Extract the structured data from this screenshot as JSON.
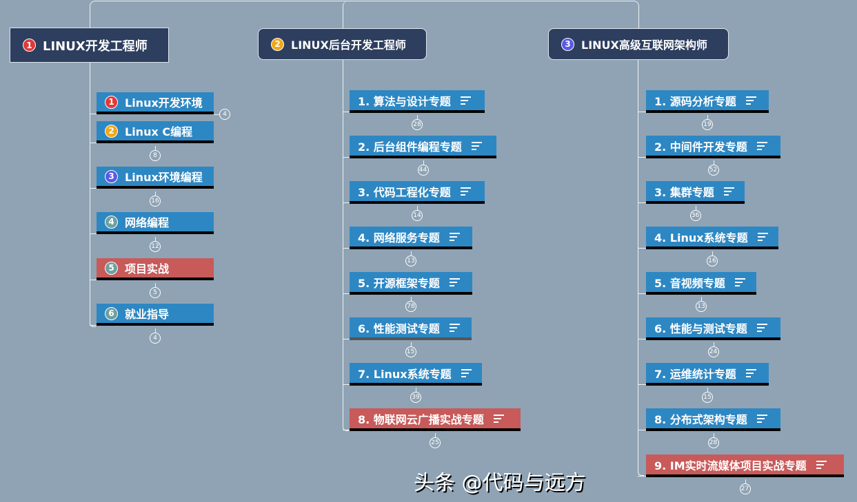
{
  "colors": {
    "background": "#8fa3b4",
    "header": "#2d3e5e",
    "node": "#2d87c3",
    "highlight": "#c85a5a"
  },
  "columns": [
    {
      "title": "LINUX开发工程师",
      "badge": "1",
      "badge_color": "#e03a3a",
      "items": [
        {
          "label": "Linux开发环境",
          "badge": "1",
          "badge_color": "#e03a3a",
          "count": "4"
        },
        {
          "label": "Linux C编程",
          "badge": "2",
          "badge_color": "#f0a818",
          "count": "8"
        },
        {
          "label": "Linux环境编程",
          "badge": "3",
          "badge_color": "#5a5ae6",
          "count": "16"
        },
        {
          "label": "网络编程",
          "badge": "4",
          "badge_color": "#6fa0a0",
          "count": "12"
        },
        {
          "label": "项目实战",
          "badge": "5",
          "badge_color": "#6fa0a0",
          "count": "5",
          "highlight": true
        },
        {
          "label": "就业指导",
          "badge": "6",
          "badge_color": "#6fa0a0",
          "count": "4"
        }
      ]
    },
    {
      "title": "LINUX后台开发工程师",
      "badge": "2",
      "badge_color": "#f0a818",
      "items": [
        {
          "label": "1. 算法与设计专题",
          "count": "28"
        },
        {
          "label": "2. 后台组件编程专题",
          "count": "44"
        },
        {
          "label": "3. 代码工程化专题",
          "count": "14"
        },
        {
          "label": "4. 网络服务专题",
          "count": "13"
        },
        {
          "label": "5. 开源框架专题",
          "count": "78"
        },
        {
          "label": "6. 性能测试专题",
          "count": "15"
        },
        {
          "label": "7. Linux系统专题",
          "count": "39"
        },
        {
          "label": "8. 物联网云广播实战专题",
          "count": "25",
          "highlight": true
        }
      ]
    },
    {
      "title": "LINUX高级互联网架构师",
      "badge": "3",
      "badge_color": "#5a5ae6",
      "items": [
        {
          "label": "1. 源码分析专题",
          "count": "19"
        },
        {
          "label": "2. 中间件开发专题",
          "count": "52"
        },
        {
          "label": "3. 集群专题",
          "count": "36"
        },
        {
          "label": "4. Linux系统专题",
          "count": "16"
        },
        {
          "label": "5. 音视频专题",
          "count": "13"
        },
        {
          "label": "6. 性能与测试专题",
          "count": "24"
        },
        {
          "label": "7. 运维统计专题",
          "count": "15"
        },
        {
          "label": "8. 分布式架构专题",
          "count": "28"
        },
        {
          "label": "9. IM实时流媒体项目实战专题",
          "count": "27",
          "highlight": true
        }
      ]
    }
  ],
  "watermark": "头条 @代码与远方"
}
